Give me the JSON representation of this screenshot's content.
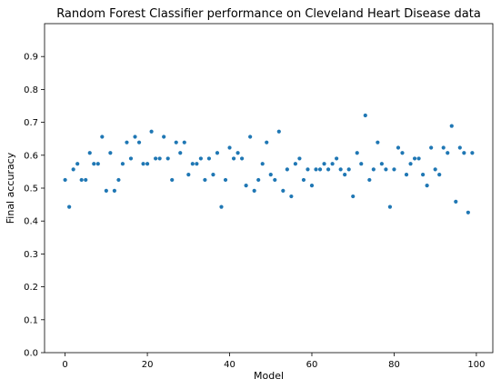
{
  "chart_data": {
    "type": "scatter",
    "title": "Random Forest Classifier performance on Cleveland Heart Disease data",
    "xlabel": "Model",
    "ylabel": "Final accuracy",
    "xlim": [
      -5,
      104
    ],
    "ylim": [
      0.0,
      1.0
    ],
    "xticks": [
      0,
      20,
      40,
      60,
      80,
      100
    ],
    "yticks": [
      0.0,
      0.1,
      0.2,
      0.3,
      0.4,
      0.5,
      0.6,
      0.7,
      0.8,
      0.9
    ],
    "xtick_labels": [
      "0",
      "20",
      "40",
      "60",
      "80",
      "100"
    ],
    "ytick_labels": [
      "0.0",
      "0.1",
      "0.2",
      "0.3",
      "0.4",
      "0.5",
      "0.6",
      "0.7",
      "0.8",
      "0.9"
    ],
    "grid": false,
    "legend": false,
    "color": "#1f77b4",
    "x": [
      0,
      1,
      2,
      3,
      4,
      5,
      6,
      7,
      8,
      9,
      10,
      11,
      12,
      13,
      14,
      15,
      16,
      17,
      18,
      19,
      20,
      21,
      22,
      23,
      24,
      25,
      26,
      27,
      28,
      29,
      30,
      31,
      32,
      33,
      34,
      35,
      36,
      37,
      38,
      39,
      40,
      41,
      42,
      43,
      44,
      45,
      46,
      47,
      48,
      49,
      50,
      51,
      52,
      53,
      54,
      55,
      56,
      57,
      58,
      59,
      60,
      61,
      62,
      63,
      64,
      65,
      66,
      67,
      68,
      69,
      70,
      71,
      72,
      73,
      74,
      75,
      76,
      77,
      78,
      79,
      80,
      81,
      82,
      83,
      84,
      85,
      86,
      87,
      88,
      89,
      90,
      91,
      92,
      93,
      94,
      95,
      96,
      97,
      98,
      99
    ],
    "y": [
      0.525,
      0.443,
      0.557,
      0.574,
      0.525,
      0.525,
      0.607,
      0.574,
      0.574,
      0.656,
      0.492,
      0.607,
      0.492,
      0.525,
      0.574,
      0.639,
      0.59,
      0.656,
      0.639,
      0.574,
      0.574,
      0.672,
      0.59,
      0.59,
      0.656,
      0.59,
      0.525,
      0.639,
      0.607,
      0.639,
      0.541,
      0.574,
      0.574,
      0.59,
      0.525,
      0.59,
      0.541,
      0.607,
      0.443,
      0.525,
      0.623,
      0.59,
      0.607,
      0.59,
      0.508,
      0.656,
      0.492,
      0.525,
      0.574,
      0.639,
      0.541,
      0.525,
      0.672,
      0.492,
      0.557,
      0.475,
      0.574,
      0.59,
      0.525,
      0.557,
      0.508,
      0.557,
      0.557,
      0.574,
      0.557,
      0.574,
      0.59,
      0.557,
      0.541,
      0.557,
      0.475,
      0.607,
      0.574,
      0.721,
      0.525,
      0.557,
      0.639,
      0.574,
      0.557,
      0.443,
      0.557,
      0.623,
      0.607,
      0.541,
      0.574,
      0.59,
      0.59,
      0.541,
      0.508,
      0.623,
      0.557,
      0.541,
      0.623,
      0.607,
      0.689,
      0.459,
      0.623,
      0.607,
      0.426,
      0.607
    ]
  }
}
